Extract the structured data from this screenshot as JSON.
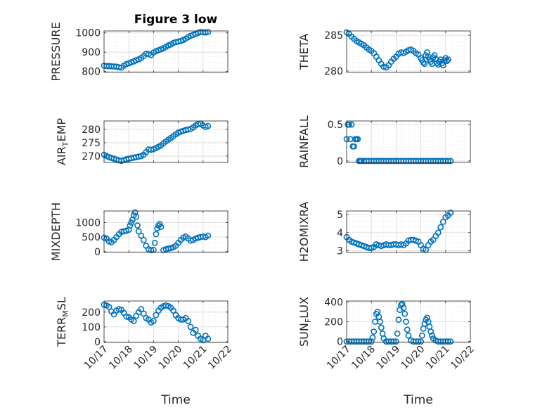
{
  "chart_data": [
    {
      "type": "scatter",
      "title": "Figure 3 low",
      "ylabel": [
        "PRESSURE"
      ],
      "xlabel": "",
      "ylim": [
        795,
        1010
      ],
      "yticks": [
        800,
        900,
        1000
      ],
      "yticklabels": [
        "800",
        "900",
        "1000"
      ],
      "xlim": [
        0,
        5
      ],
      "xticks": [
        0,
        1,
        2,
        3,
        4,
        5
      ],
      "xticklabels": [],
      "grid": true,
      "x": [
        0.0,
        0.1,
        0.2,
        0.3,
        0.4,
        0.5,
        0.6,
        0.7,
        0.8,
        0.9,
        1.0,
        1.1,
        1.2,
        1.3,
        1.4,
        1.5,
        1.6,
        1.7,
        1.8,
        1.9,
        2.0,
        2.1,
        2.2,
        2.3,
        2.4,
        2.5,
        2.6,
        2.7,
        2.8,
        2.9,
        3.0,
        3.1,
        3.2,
        3.3,
        3.4,
        3.5,
        3.6,
        3.7,
        3.8,
        3.9,
        4.0,
        4.1,
        4.2
      ],
      "y": [
        830,
        828,
        828,
        827,
        826,
        825,
        822,
        820,
        830,
        838,
        842,
        848,
        852,
        858,
        863,
        870,
        880,
        892,
        890,
        885,
        898,
        905,
        910,
        915,
        920,
        928,
        935,
        940,
        948,
        952,
        955,
        958,
        963,
        970,
        978,
        985,
        990,
        995,
        1000,
        1005,
        1003,
        1002,
        1004
      ]
    },
    {
      "type": "scatter",
      "ylabel": [
        "THETA"
      ],
      "xlabel": "",
      "ylim": [
        279.8,
        285.6
      ],
      "yticks": [
        280,
        285
      ],
      "yticklabels": [
        "280",
        "285"
      ],
      "xlim": [
        0,
        5
      ],
      "xticks": [
        0,
        1,
        2,
        3,
        4,
        5
      ],
      "xticklabels": [],
      "grid": true,
      "x": [
        0.0,
        0.1,
        0.2,
        0.3,
        0.4,
        0.5,
        0.6,
        0.7,
        0.8,
        0.9,
        1.0,
        1.1,
        1.2,
        1.3,
        1.4,
        1.5,
        1.6,
        1.7,
        1.8,
        1.9,
        2.0,
        2.1,
        2.2,
        2.3,
        2.4,
        2.5,
        2.6,
        2.7,
        2.8,
        2.9,
        3.0,
        3.05,
        3.1,
        3.15,
        3.2,
        3.25,
        3.3,
        3.35,
        3.4,
        3.45,
        3.5,
        3.55,
        3.6,
        3.65,
        3.7,
        3.75,
        3.8,
        3.85,
        3.9,
        3.95,
        4.0,
        4.05,
        4.1
      ],
      "y": [
        285.4,
        285.2,
        284.8,
        284.5,
        284.2,
        284.0,
        283.8,
        283.6,
        283.3,
        283.0,
        282.8,
        282.5,
        282.0,
        281.5,
        281.0,
        280.6,
        280.5,
        280.8,
        281.3,
        281.7,
        282.0,
        282.4,
        282.6,
        282.5,
        282.7,
        282.9,
        283.0,
        282.8,
        282.5,
        282.3,
        281.8,
        281.5,
        281.2,
        281.0,
        282.2,
        282.6,
        282.0,
        281.6,
        281.3,
        281.0,
        281.9,
        282.2,
        281.7,
        281.1,
        280.9,
        281.3,
        281.6,
        281.1,
        280.8,
        281.5,
        281.8,
        281.4,
        281.6
      ]
    },
    {
      "type": "scatter",
      "ylabel": [
        "AIR",
        "T",
        "EMP"
      ],
      "xlabel": "",
      "ylim": [
        267.6,
        283.2
      ],
      "yticks": [
        270,
        275,
        280
      ],
      "yticklabels": [
        "270",
        "275",
        "280"
      ],
      "xlim": [
        0,
        5
      ],
      "xticks": [
        0,
        1,
        2,
        3,
        4,
        5
      ],
      "xticklabels": [],
      "grid": true,
      "x": [
        0.0,
        0.1,
        0.2,
        0.3,
        0.4,
        0.5,
        0.6,
        0.7,
        0.8,
        0.9,
        1.0,
        1.1,
        1.2,
        1.3,
        1.4,
        1.5,
        1.6,
        1.7,
        1.8,
        1.9,
        2.0,
        2.1,
        2.2,
        2.3,
        2.4,
        2.5,
        2.6,
        2.7,
        2.8,
        2.9,
        3.0,
        3.1,
        3.2,
        3.3,
        3.4,
        3.5,
        3.6,
        3.7,
        3.8,
        3.9,
        4.0,
        4.1,
        4.2
      ],
      "y": [
        270.5,
        270.0,
        269.6,
        269.3,
        269.0,
        268.7,
        268.4,
        268.2,
        268.5,
        268.8,
        269.0,
        269.2,
        269.4,
        269.6,
        269.8,
        270.0,
        270.5,
        271.5,
        272.5,
        272.4,
        272.6,
        273.0,
        273.5,
        274.0,
        274.8,
        275.5,
        276.2,
        276.8,
        277.5,
        278.2,
        278.8,
        279.2,
        279.5,
        279.8,
        280.0,
        280.2,
        280.8,
        281.5,
        282.0,
        282.2,
        281.5,
        281.0,
        281.3
      ]
    },
    {
      "type": "scatter",
      "ylabel": [
        "RAINFALL"
      ],
      "xlabel": "",
      "ylim": [
        -0.02,
        0.55
      ],
      "yticks": [
        0,
        0.5
      ],
      "yticklabels": [
        "0",
        "0.5"
      ],
      "xlim": [
        0,
        5
      ],
      "xticks": [
        0,
        1,
        2,
        3,
        4,
        5
      ],
      "xticklabels": [],
      "grid": true,
      "x": [
        0.0,
        0.05,
        0.1,
        0.15,
        0.2,
        0.25,
        0.3,
        0.35,
        0.4,
        0.45,
        0.5,
        0.55,
        0.6,
        0.7,
        0.8,
        0.9,
        1.0,
        1.1,
        1.2,
        1.3,
        1.4,
        1.5,
        1.6,
        1.7,
        1.8,
        1.9,
        2.0,
        2.1,
        2.2,
        2.3,
        2.4,
        2.5,
        2.6,
        2.7,
        2.8,
        2.9,
        3.0,
        3.1,
        3.2,
        3.3,
        3.4,
        3.5,
        3.6,
        3.7,
        3.8,
        3.9,
        4.0,
        4.1,
        4.2
      ],
      "y": [
        0.3,
        0.5,
        0.5,
        0.3,
        0.5,
        0.2,
        0.2,
        0.3,
        0.3,
        0.3,
        0,
        0,
        0,
        0,
        0,
        0,
        0,
        0,
        0,
        0,
        0,
        0,
        0,
        0,
        0,
        0,
        0,
        0,
        0,
        0,
        0,
        0,
        0,
        0,
        0,
        0,
        0,
        0,
        0,
        0,
        0,
        0,
        0,
        0,
        0,
        0,
        0,
        0,
        0
      ]
    },
    {
      "type": "scatter",
      "ylabel": [
        "MIXDEPTH"
      ],
      "xlabel": "",
      "ylim": [
        -30,
        1400
      ],
      "yticks": [
        0,
        500,
        1000
      ],
      "yticklabels": [
        "0",
        "500",
        "1000"
      ],
      "xlim": [
        0,
        5
      ],
      "xticks": [
        0,
        1,
        2,
        3,
        4,
        5
      ],
      "xticklabels": [],
      "grid": true,
      "x": [
        0.0,
        0.1,
        0.2,
        0.3,
        0.4,
        0.5,
        0.6,
        0.7,
        0.8,
        0.9,
        1.0,
        1.05,
        1.1,
        1.15,
        1.2,
        1.25,
        1.3,
        1.35,
        1.4,
        1.5,
        1.6,
        1.7,
        1.8,
        1.9,
        2.0,
        2.05,
        2.1,
        2.15,
        2.2,
        2.25,
        2.3,
        2.4,
        2.5,
        2.6,
        2.7,
        2.8,
        2.9,
        3.0,
        3.1,
        3.2,
        3.3,
        3.4,
        3.5,
        3.6,
        3.7,
        3.8,
        3.9,
        4.0,
        4.1,
        4.2
      ],
      "y": [
        480,
        450,
        350,
        320,
        400,
        500,
        600,
        680,
        700,
        720,
        750,
        900,
        1000,
        1100,
        1250,
        1350,
        1200,
        900,
        700,
        550,
        400,
        200,
        80,
        50,
        60,
        300,
        600,
        800,
        900,
        950,
        850,
        50,
        80,
        100,
        120,
        150,
        200,
        300,
        400,
        480,
        520,
        450,
        380,
        400,
        450,
        480,
        500,
        520,
        500,
        550
      ]
    },
    {
      "type": "scatter",
      "ylabel": [
        "H2OMIXRA"
      ],
      "xlabel": "",
      "ylim": [
        2.9,
        5.2
      ],
      "yticks": [
        3,
        4,
        5
      ],
      "yticklabels": [
        "3",
        "4",
        "5"
      ],
      "xlim": [
        0,
        5
      ],
      "xticks": [
        0,
        1,
        2,
        3,
        4,
        5
      ],
      "xticklabels": [],
      "grid": true,
      "x": [
        0.0,
        0.1,
        0.2,
        0.3,
        0.4,
        0.5,
        0.6,
        0.7,
        0.8,
        0.9,
        1.0,
        1.1,
        1.2,
        1.3,
        1.4,
        1.5,
        1.6,
        1.7,
        1.8,
        1.9,
        2.0,
        2.1,
        2.2,
        2.3,
        2.4,
        2.5,
        2.6,
        2.7,
        2.8,
        2.9,
        3.0,
        3.1,
        3.2,
        3.3,
        3.4,
        3.5,
        3.6,
        3.7,
        3.8,
        3.9,
        4.0,
        4.1,
        4.2
      ],
      "y": [
        3.75,
        3.6,
        3.5,
        3.45,
        3.4,
        3.35,
        3.3,
        3.25,
        3.2,
        3.15,
        3.15,
        3.2,
        3.35,
        3.3,
        3.25,
        3.3,
        3.35,
        3.3,
        3.32,
        3.35,
        3.35,
        3.3,
        3.35,
        3.3,
        3.4,
        3.55,
        3.6,
        3.6,
        3.55,
        3.5,
        3.3,
        3.1,
        3.05,
        3.3,
        3.5,
        3.6,
        3.8,
        4.0,
        4.3,
        4.6,
        4.85,
        4.95,
        5.1
      ]
    },
    {
      "type": "scatter",
      "ylabel": [
        "TERR",
        "M",
        "SL"
      ],
      "xlabel": "Time",
      "ylim": [
        -5,
        275
      ],
      "yticks": [
        0,
        100,
        200
      ],
      "yticklabels": [
        "0",
        "100",
        "200"
      ],
      "xlim": [
        0,
        5
      ],
      "xticks": [
        0,
        1,
        2,
        3,
        4,
        5
      ],
      "xticklabels": [
        "10/17",
        "10/18",
        "10/19",
        "10/20",
        "10/21",
        "10/22"
      ],
      "grid": true,
      "x": [
        0.0,
        0.1,
        0.2,
        0.3,
        0.4,
        0.5,
        0.6,
        0.7,
        0.8,
        0.9,
        1.0,
        1.1,
        1.2,
        1.3,
        1.4,
        1.5,
        1.6,
        1.7,
        1.8,
        1.9,
        2.0,
        2.1,
        2.2,
        2.3,
        2.4,
        2.5,
        2.6,
        2.7,
        2.8,
        2.9,
        3.0,
        3.1,
        3.2,
        3.3,
        3.4,
        3.5,
        3.6,
        3.7,
        3.8,
        3.9,
        4.0,
        4.1,
        4.2
      ],
      "y": [
        250,
        245,
        235,
        205,
        185,
        210,
        220,
        215,
        195,
        170,
        165,
        150,
        140,
        175,
        200,
        220,
        190,
        160,
        150,
        130,
        140,
        180,
        210,
        230,
        240,
        245,
        240,
        230,
        210,
        180,
        160,
        150,
        150,
        160,
        140,
        100,
        60,
        80,
        40,
        20,
        10,
        40,
        20
      ]
    },
    {
      "type": "scatter",
      "ylabel": [
        "SUN",
        "F",
        "LUX"
      ],
      "xlabel": "Time",
      "ylim": [
        -10,
        410
      ],
      "yticks": [
        0,
        200,
        400
      ],
      "yticklabels": [
        "0",
        "200",
        "400"
      ],
      "xlim": [
        0,
        5
      ],
      "xticks": [
        0,
        1,
        2,
        3,
        4,
        5
      ],
      "xticklabels": [
        "10/17",
        "10/18",
        "10/19",
        "10/20",
        "10/21",
        "10/22"
      ],
      "grid": true,
      "x": [
        0.0,
        0.1,
        0.2,
        0.3,
        0.4,
        0.5,
        0.6,
        0.7,
        0.8,
        0.9,
        1.0,
        1.05,
        1.1,
        1.15,
        1.2,
        1.25,
        1.3,
        1.35,
        1.4,
        1.45,
        1.5,
        1.6,
        1.7,
        1.8,
        1.9,
        2.0,
        2.05,
        2.1,
        2.15,
        2.2,
        2.25,
        2.3,
        2.35,
        2.4,
        2.45,
        2.5,
        2.6,
        2.7,
        2.8,
        2.9,
        3.0,
        3.05,
        3.1,
        3.15,
        3.2,
        3.25,
        3.3,
        3.35,
        3.4,
        3.45,
        3.5,
        3.6,
        3.7,
        3.8,
        3.9,
        4.0,
        4.1,
        4.2
      ],
      "y": [
        0,
        0,
        0,
        0,
        0,
        0,
        0,
        0,
        0,
        0,
        0,
        40,
        100,
        200,
        280,
        300,
        250,
        200,
        140,
        80,
        30,
        0,
        0,
        0,
        0,
        0,
        80,
        220,
        320,
        370,
        380,
        340,
        280,
        200,
        120,
        60,
        10,
        0,
        0,
        0,
        0,
        60,
        130,
        180,
        220,
        240,
        200,
        150,
        100,
        60,
        30,
        10,
        0,
        0,
        0,
        0,
        0,
        0
      ]
    }
  ]
}
